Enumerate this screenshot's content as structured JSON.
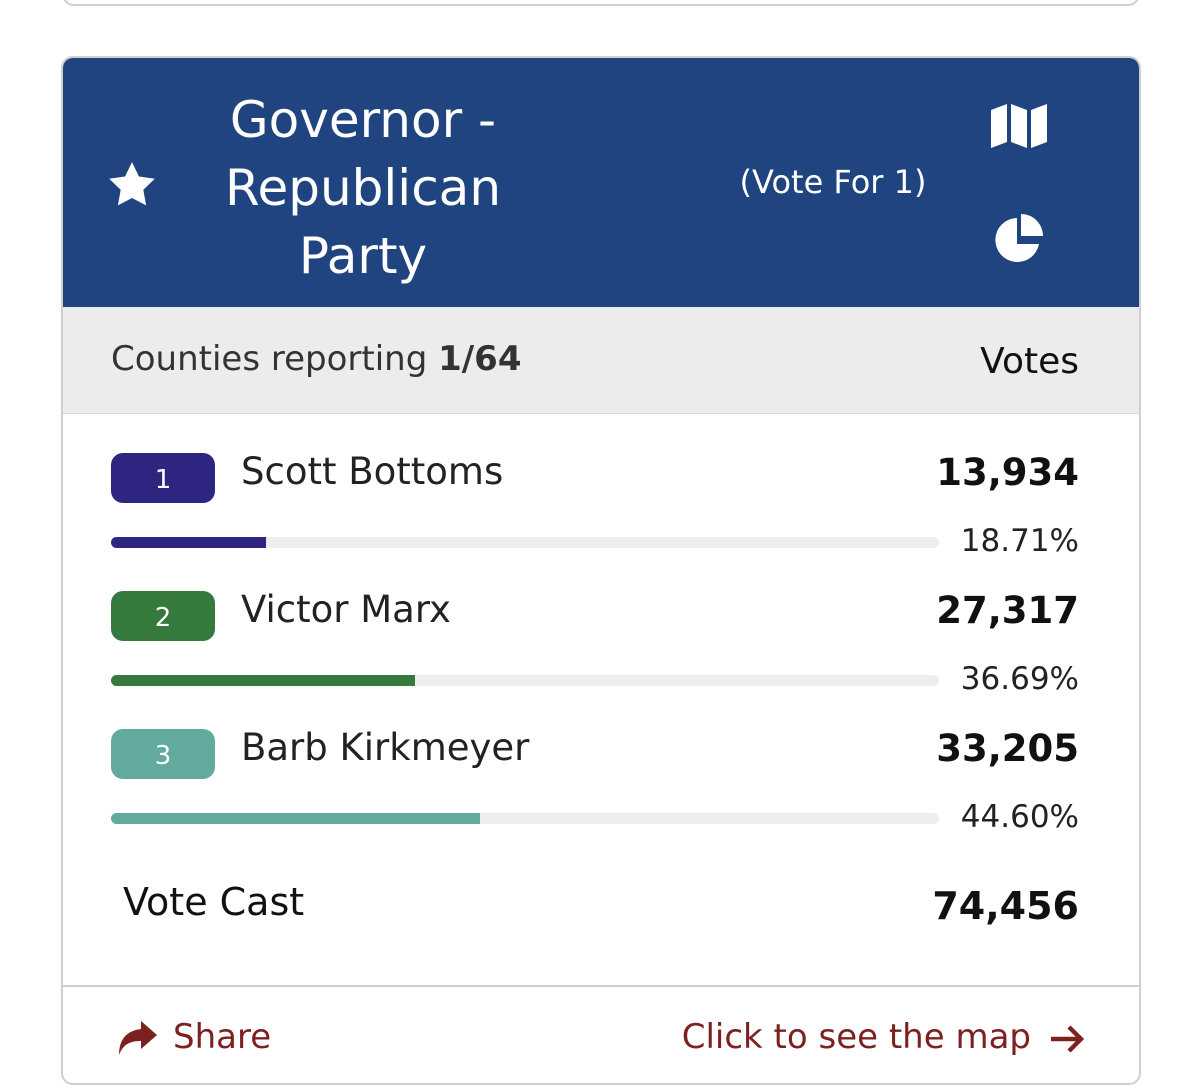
{
  "header": {
    "title": "Governor - Republican Party",
    "vote_for": "(Vote For 1)"
  },
  "summary": {
    "counties_label": "Counties reporting",
    "counties_value": "1/64",
    "votes_header": "Votes"
  },
  "candidates": [
    {
      "rank": "1",
      "name": "Scott Bottoms",
      "votes": "13,934",
      "percent": 18.71,
      "percent_label": "18.71%",
      "color": "#2e2580"
    },
    {
      "rank": "2",
      "name": "Victor Marx",
      "votes": "27,317",
      "percent": 36.69,
      "percent_label": "36.69%",
      "color": "#357a3c"
    },
    {
      "rank": "3",
      "name": "Barb Kirkmeyer",
      "votes": "33,205",
      "percent": 44.6,
      "percent_label": "44.60%",
      "color": "#62aa9d"
    }
  ],
  "total": {
    "label": "Vote Cast",
    "value": "74,456"
  },
  "footer": {
    "share": "Share",
    "map_link": "Click to see the map"
  }
}
